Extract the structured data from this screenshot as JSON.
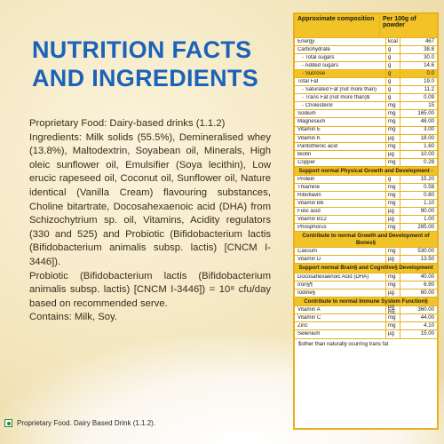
{
  "title": {
    "line1": "NUTRITION FACTS",
    "line2": "AND INGREDIENTS"
  },
  "paragraphs": {
    "p1": "Proprietary Food: Dairy-based drinks (1.1.2)",
    "p2": "Ingredients: Milk solids (55.5%), Demineralised whey (13.8%), Maltodextrin, Soyabean oil, Minerals, High oleic sunflower oil, Emulsifier (Soya lecithin), Low erucic rapeseed oil, Coconut oil, Sunflower oil, Nature identical (Vanilla Cream) flavouring substances, Choline bitartrate, Docosahexaenoic acid (DHA) from Schizochytrium sp. oil, Vitamins, Acidity regulators (330 and 525) and Probiotic (Bifidobacterium lactis (Bifidobacterium animalis subsp. lactis) [CNCM I-3446]).",
    "p3": "Probiotic (Bifidobacterium lactis (Bifidobacterium animalis subsp. lactis) [CNCM I-3446]) = 10⁸ cfu/day based on recommended serve.",
    "p4": "Contains: Milk, Soy."
  },
  "footnote": "Proprietary Food. Dairy Based Drink (1.1.2).",
  "table": {
    "header_left": "Approximate composition",
    "header_right": "Per 100g of powder",
    "rows1": [
      {
        "n": "Energy",
        "u": "kcal",
        "v": "467"
      },
      {
        "n": "Carbohydrate",
        "u": "g",
        "v": "38.8"
      },
      {
        "n": "- Total sugars",
        "u": "g",
        "v": "30.0",
        "ind": true
      },
      {
        "n": "- Added sugars",
        "u": "g",
        "v": "14.6",
        "ind": true
      },
      {
        "n": "- Sucrose",
        "u": "g",
        "v": "0.0",
        "ind": true,
        "hl": true
      },
      {
        "n": "Total Fat",
        "u": "g",
        "v": "19.0"
      },
      {
        "n": "- Saturated Fat (not more than)",
        "u": "g",
        "v": "11.2",
        "ind": true
      },
      {
        "n": "- Trans Fat (not more than)$",
        "u": "g",
        "v": "0.09",
        "ind": true
      },
      {
        "n": "- Cholesterol",
        "u": "mg",
        "v": "15",
        "ind": true
      },
      {
        "n": "Sodium",
        "u": "mg",
        "v": "165.00"
      },
      {
        "n": "Magnesium",
        "u": "mg",
        "v": "48.00"
      },
      {
        "n": "Vitamin E",
        "u": "mg",
        "v": "3.00"
      },
      {
        "n": "Vitamin K",
        "u": "µg",
        "v": "18.00"
      },
      {
        "n": "Pantothenic acid",
        "u": "mg",
        "v": "1.60"
      },
      {
        "n": "Biotin",
        "u": "µg",
        "v": "10.00"
      },
      {
        "n": "Copper",
        "u": "mg",
        "v": "0.28"
      }
    ],
    "sec1": "Support normal Physical Growth and Development -",
    "rows2": [
      {
        "n": "Protein",
        "u": "g",
        "v": "15.20"
      },
      {
        "n": "Thiamine",
        "u": "mg",
        "v": "0.58"
      },
      {
        "n": "Riboflavin",
        "u": "mg",
        "v": "0.80"
      },
      {
        "n": "Vitamin B6",
        "u": "mg",
        "v": "1.10"
      },
      {
        "n": "Folic acid",
        "u": "µg",
        "v": "90.00"
      },
      {
        "n": "Vitamin B12",
        "u": "µg",
        "v": "1.00"
      },
      {
        "n": "Phosphorus",
        "u": "mg",
        "v": "285.00"
      }
    ],
    "sec2": "Contribute to normal Growth and Development of Bones§",
    "rows3": [
      {
        "n": "Calcium",
        "u": "mg",
        "v": "530.00"
      },
      {
        "n": "Vitamin D",
        "u": "µg",
        "v": "13.50"
      }
    ],
    "sec3": "Support normal Brain§ and Cognitive§ Development",
    "rows4": [
      {
        "n": "Docosahexaenoic Acid (DHA)",
        "u": "mg",
        "v": "40.00"
      },
      {
        "n": "Iron§¶",
        "u": "mg",
        "v": "6.90"
      },
      {
        "n": "Iodine§",
        "u": "µg",
        "v": "60.00"
      }
    ],
    "sec4": "Contribute to normal Immune System Function§",
    "rows5": [
      {
        "n": "Vitamin A",
        "u": "µg RE",
        "v": "360.00"
      },
      {
        "n": "Vitamin C",
        "u": "mg",
        "v": "44.00"
      },
      {
        "n": "Zinc",
        "u": "mg",
        "v": "4.10"
      },
      {
        "n": "Selenium",
        "u": "µg",
        "v": "15.00"
      }
    ],
    "foot": "$other than naturally ocurring trans fat"
  }
}
